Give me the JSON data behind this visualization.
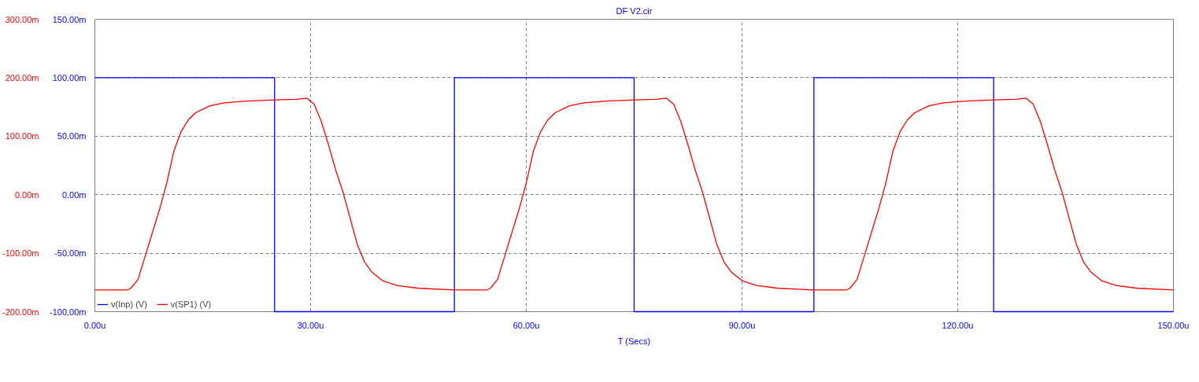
{
  "chart_data": {
    "type": "line",
    "title": "DF V2.cir",
    "xlabel": "T (Secs)",
    "xlim": [
      0,
      150
    ],
    "xticks": [
      {
        "value": 0,
        "label": "0.00u"
      },
      {
        "value": 30,
        "label": "30.00u"
      },
      {
        "value": 60,
        "label": "60.00u"
      },
      {
        "value": 90,
        "label": "90.00u"
      },
      {
        "value": 120,
        "label": "120.00u"
      },
      {
        "value": 150,
        "label": "150.00u"
      }
    ],
    "ylim": [
      -100,
      150
    ],
    "yticks": [
      {
        "value": -100,
        "label": "-100.00m"
      },
      {
        "value": -50,
        "label": "-50.00m"
      },
      {
        "value": 0,
        "label": "0.00m"
      },
      {
        "value": 50,
        "label": "50.00m"
      },
      {
        "value": 100,
        "label": "100.00m"
      },
      {
        "value": 150,
        "label": "150.00m"
      }
    ],
    "y2lim": [
      -200,
      300
    ],
    "y2ticks": [
      {
        "value": -200,
        "label": "-200.00m"
      },
      {
        "value": -100,
        "label": "-100.00m"
      },
      {
        "value": 0,
        "label": "0.00m"
      },
      {
        "value": 100,
        "label": "100.00m"
      },
      {
        "value": 200,
        "label": "200.00m"
      },
      {
        "value": 300,
        "label": "300.00m"
      }
    ],
    "grid": true,
    "legend": "bottom left",
    "series": [
      {
        "name": "v(Inp) (V)",
        "color": "#0000ff",
        "x": [
          0,
          25,
          25,
          50,
          50,
          75,
          75,
          100,
          100,
          125,
          125,
          150
        ],
        "values": [
          100,
          100,
          -100,
          -100,
          100,
          100,
          -100,
          -100,
          100,
          100,
          -100,
          -100
        ]
      },
      {
        "name": "v(SP1) (V)",
        "color": "#ff0000",
        "axis": "y2",
        "x": [
          0,
          4.5,
          5,
          6,
          7,
          8,
          9,
          10,
          11,
          12,
          13,
          14,
          16,
          18,
          21,
          25,
          28,
          29.5,
          30.5,
          31.5,
          32.5,
          33.5,
          34.5,
          35.5,
          36.5,
          37.5,
          38.5,
          40,
          42,
          45,
          50,
          54.5,
          55,
          56,
          57,
          58,
          59,
          60,
          61,
          62,
          63,
          64,
          66,
          68,
          71,
          75,
          78,
          79.5,
          80.5,
          81.5,
          82.5,
          83.5,
          84.5,
          85.5,
          86.5,
          87.5,
          88.5,
          90,
          92,
          95,
          100,
          104.5,
          105,
          106,
          107,
          108,
          109,
          110,
          111,
          112,
          113,
          114,
          116,
          118,
          121,
          125,
          128,
          129.5,
          130.5,
          131.5,
          132.5,
          133.5,
          134.5,
          135.5,
          136.5,
          137.5,
          138.5,
          140,
          142,
          145,
          150
        ],
        "values": [
          -163,
          -163,
          -160,
          -145,
          -105,
          -65,
          -25,
          20,
          75,
          108,
          128,
          140,
          152,
          157,
          160,
          162,
          163,
          165,
          155,
          125,
          85,
          42,
          5,
          -40,
          -85,
          -115,
          -132,
          -147,
          -155,
          -160,
          -163,
          -163,
          -160,
          -145,
          -105,
          -65,
          -25,
          20,
          75,
          108,
          128,
          140,
          152,
          157,
          160,
          162,
          163,
          165,
          155,
          125,
          85,
          42,
          5,
          -40,
          -85,
          -115,
          -132,
          -147,
          -155,
          -160,
          -163,
          -163,
          -160,
          -145,
          -105,
          -65,
          -25,
          20,
          75,
          108,
          128,
          140,
          152,
          157,
          160,
          162,
          163,
          165,
          155,
          125,
          85,
          42,
          5,
          -40,
          -85,
          -115,
          -132,
          -147,
          -155,
          -160,
          -163
        ]
      }
    ]
  }
}
